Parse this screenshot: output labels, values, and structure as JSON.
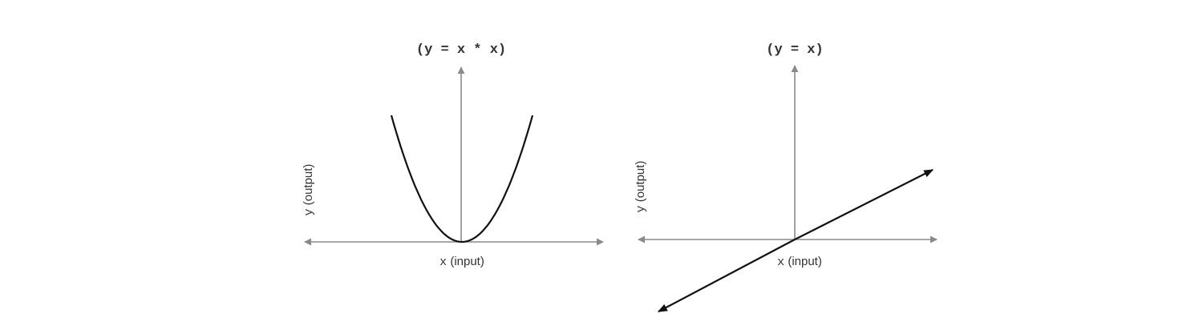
{
  "diagrams": [
    {
      "title": "(y = x * x)",
      "x_label_var": "x",
      "x_label_rest": " (input)",
      "y_label_var": "y",
      "y_label_rest": " (output)"
    },
    {
      "title": "(y = x)",
      "x_label_var": "x",
      "x_label_rest": " (input)",
      "y_label_var": "y",
      "y_label_rest": " (output)"
    }
  ]
}
